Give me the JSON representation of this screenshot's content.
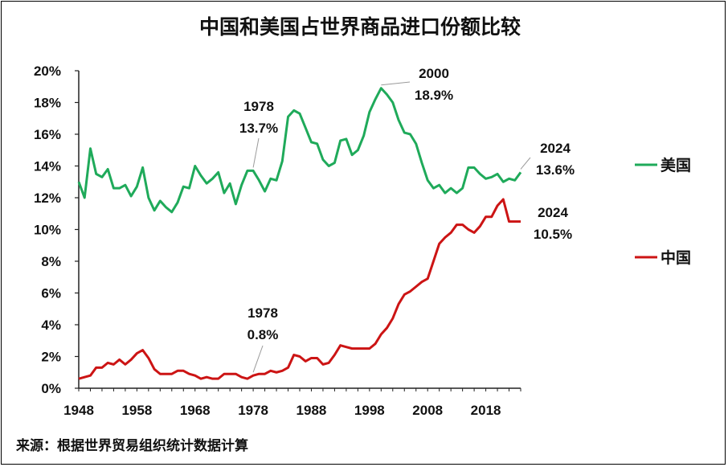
{
  "chart_data": {
    "type": "line",
    "title": "中国和美国占世界商品进口份额比较",
    "source": "来源：根据世界贸易组织统计数据计算",
    "xlim": [
      1948,
      2024
    ],
    "ylim": [
      0,
      20
    ],
    "xticks": [
      1948,
      1958,
      1968,
      1978,
      1988,
      1998,
      2008,
      2018
    ],
    "yticks": [
      "0%",
      "2%",
      "4%",
      "6%",
      "8%",
      "10%",
      "12%",
      "14%",
      "16%",
      "18%",
      "20%"
    ],
    "grid": false,
    "legend_position": "right",
    "series": [
      {
        "name": "美国",
        "color": "#1faa5a",
        "x": [
          1948,
          1949,
          1950,
          1951,
          1952,
          1953,
          1954,
          1955,
          1956,
          1957,
          1958,
          1959,
          1960,
          1961,
          1962,
          1963,
          1964,
          1965,
          1966,
          1967,
          1968,
          1969,
          1970,
          1971,
          1972,
          1973,
          1974,
          1975,
          1976,
          1977,
          1978,
          1979,
          1980,
          1981,
          1982,
          1983,
          1984,
          1985,
          1986,
          1987,
          1988,
          1989,
          1990,
          1991,
          1992,
          1993,
          1994,
          1995,
          1996,
          1997,
          1998,
          1999,
          2000,
          2001,
          2002,
          2003,
          2004,
          2005,
          2006,
          2007,
          2008,
          2009,
          2010,
          2011,
          2012,
          2013,
          2014,
          2015,
          2016,
          2017,
          2018,
          2019,
          2020,
          2021,
          2022,
          2023,
          2024
        ],
        "values": [
          13.0,
          12.0,
          15.1,
          13.5,
          13.3,
          13.8,
          12.6,
          12.6,
          12.8,
          12.1,
          12.7,
          13.9,
          12.0,
          11.2,
          11.8,
          11.4,
          11.1,
          11.7,
          12.7,
          12.6,
          14.0,
          13.4,
          12.9,
          13.2,
          13.6,
          12.3,
          12.9,
          11.6,
          12.8,
          13.7,
          13.7,
          13.1,
          12.4,
          13.2,
          13.1,
          14.3,
          17.1,
          17.5,
          17.3,
          16.4,
          15.5,
          15.4,
          14.4,
          14.0,
          14.2,
          15.6,
          15.7,
          14.7,
          15.0,
          15.9,
          17.4,
          18.2,
          18.9,
          18.5,
          18.0,
          16.9,
          16.1,
          16.0,
          15.4,
          14.2,
          13.1,
          12.6,
          12.8,
          12.3,
          12.6,
          12.3,
          12.6,
          13.9,
          13.9,
          13.5,
          13.2,
          13.3,
          13.5,
          13.0,
          13.2,
          13.1,
          13.6
        ]
      },
      {
        "name": "中国",
        "color": "#cc1414",
        "x": [
          1948,
          1949,
          1950,
          1951,
          1952,
          1953,
          1954,
          1955,
          1956,
          1957,
          1958,
          1959,
          1960,
          1961,
          1962,
          1963,
          1964,
          1965,
          1966,
          1967,
          1968,
          1969,
          1970,
          1971,
          1972,
          1973,
          1974,
          1975,
          1976,
          1977,
          1978,
          1979,
          1980,
          1981,
          1982,
          1983,
          1984,
          1985,
          1986,
          1987,
          1988,
          1989,
          1990,
          1991,
          1992,
          1993,
          1994,
          1995,
          1996,
          1997,
          1998,
          1999,
          2000,
          2001,
          2002,
          2003,
          2004,
          2005,
          2006,
          2007,
          2008,
          2009,
          2010,
          2011,
          2012,
          2013,
          2014,
          2015,
          2016,
          2017,
          2018,
          2019,
          2020,
          2021,
          2022,
          2023,
          2024
        ],
        "values": [
          0.6,
          0.7,
          0.8,
          1.3,
          1.3,
          1.6,
          1.5,
          1.8,
          1.5,
          1.8,
          2.2,
          2.4,
          1.9,
          1.2,
          0.9,
          0.9,
          0.9,
          1.1,
          1.1,
          0.9,
          0.8,
          0.6,
          0.7,
          0.6,
          0.6,
          0.9,
          0.9,
          0.9,
          0.7,
          0.6,
          0.8,
          0.9,
          0.9,
          1.1,
          1.0,
          1.1,
          1.3,
          2.1,
          2.0,
          1.7,
          1.9,
          1.9,
          1.5,
          1.6,
          2.1,
          2.7,
          2.6,
          2.5,
          2.5,
          2.5,
          2.5,
          2.8,
          3.4,
          3.8,
          4.4,
          5.3,
          5.9,
          6.1,
          6.4,
          6.7,
          6.9,
          8.0,
          9.1,
          9.5,
          9.8,
          10.3,
          10.3,
          10.0,
          9.8,
          10.2,
          10.8,
          10.8,
          11.5,
          11.9,
          10.5,
          10.5,
          10.5
        ]
      }
    ],
    "annotations": [
      {
        "year": "1978",
        "value": "13.7%",
        "series": "美国"
      },
      {
        "year": "2000",
        "value": "18.9%",
        "series": "美国"
      },
      {
        "year": "2024",
        "value": "13.6%",
        "series": "美国"
      },
      {
        "year": "1978",
        "value": "0.8%",
        "series": "中国"
      },
      {
        "year": "2024",
        "value": "10.5%",
        "series": "中国"
      }
    ]
  }
}
